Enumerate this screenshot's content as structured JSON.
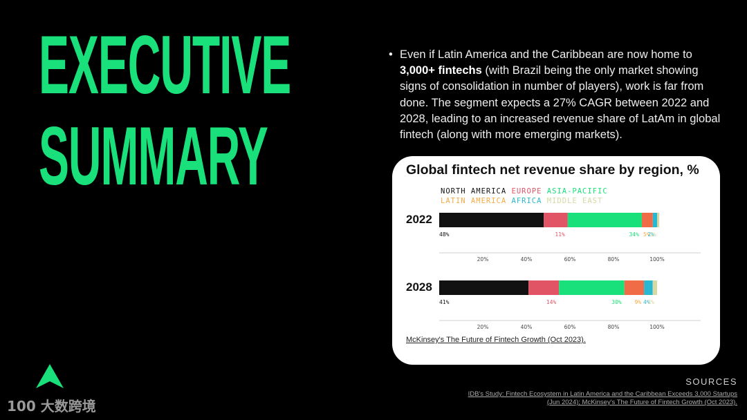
{
  "slide": {
    "title_line1": "EXECUTIVE",
    "title_line2": "SUMMARY",
    "bullet_char": "•",
    "bullet_pre": "Even if Latin America and the Caribbean are now home to ",
    "bullet_bold": "3,000+ fintechs",
    "bullet_post": " (with Brazil being the only market showing signs of consolidation in number of players), work is far from done. The segment expects a 27% CAGR between 2022 and 2028, leading to an increased revenue share of LatAm in global fintech (along with more emerging markets).",
    "sources_heading": "SOURCES",
    "sources_text": "IDB's Study: Fintech Ecosystem in Latin America and the Caribbean Exceeds 3,000 Startups (Jun 2024); McKinsey's The Future of Fintech Growth (Oct 2023).",
    "watermark": "大数跨境",
    "watermark_mark": "100",
    "accent_color": "#19e07a"
  },
  "chart_data": {
    "type": "bar",
    "orientation": "horizontal-stacked",
    "title": "Global fintech net revenue share by region, %",
    "source": "McKinsey's The Future of Fintech Growth (Oct 2023).",
    "legend": [
      {
        "name": "NORTH AMERICA",
        "color": "#111111"
      },
      {
        "name": "EUROPE",
        "color": "#e05465"
      },
      {
        "name": "ASIA-PACIFIC",
        "color": "#19e07a"
      },
      {
        "name": "LATIN AMERICA",
        "color": "#f7a944"
      },
      {
        "name": "AFRICA",
        "color": "#29b8cf"
      },
      {
        "name": "MIDDLE EAST",
        "color": "#d5d9a6"
      }
    ],
    "bar_colors": [
      "#111111",
      "#e05465",
      "#19e07a",
      "#ef6c46",
      "#29b8cf",
      "#d5d9a6"
    ],
    "label_colors": [
      "#111111",
      "#e05465",
      "#19e07a",
      "#f7a944",
      "#29b8cf",
      "#d5d9a6"
    ],
    "series_names": [
      "North America",
      "Europe",
      "Asia-Pacific",
      "Latin America",
      "Africa",
      "Middle East"
    ],
    "categories": [
      "2022",
      "2028"
    ],
    "rows": [
      {
        "year": "2022",
        "values": [
          48,
          11,
          34,
          5,
          2,
          1
        ],
        "labels": [
          "48%",
          "11%",
          "34%",
          "5%",
          "2%",
          "1%"
        ]
      },
      {
        "year": "2028",
        "values": [
          41,
          14,
          30,
          9,
          4,
          2
        ],
        "labels": [
          "41%",
          "14%",
          "30%",
          "9%",
          "4%",
          "2%"
        ]
      }
    ],
    "xlim": [
      0,
      100
    ],
    "ticks": [
      20,
      40,
      60,
      80,
      100
    ],
    "tick_labels": [
      "20%",
      "40%",
      "60%",
      "80%",
      "100%"
    ]
  }
}
